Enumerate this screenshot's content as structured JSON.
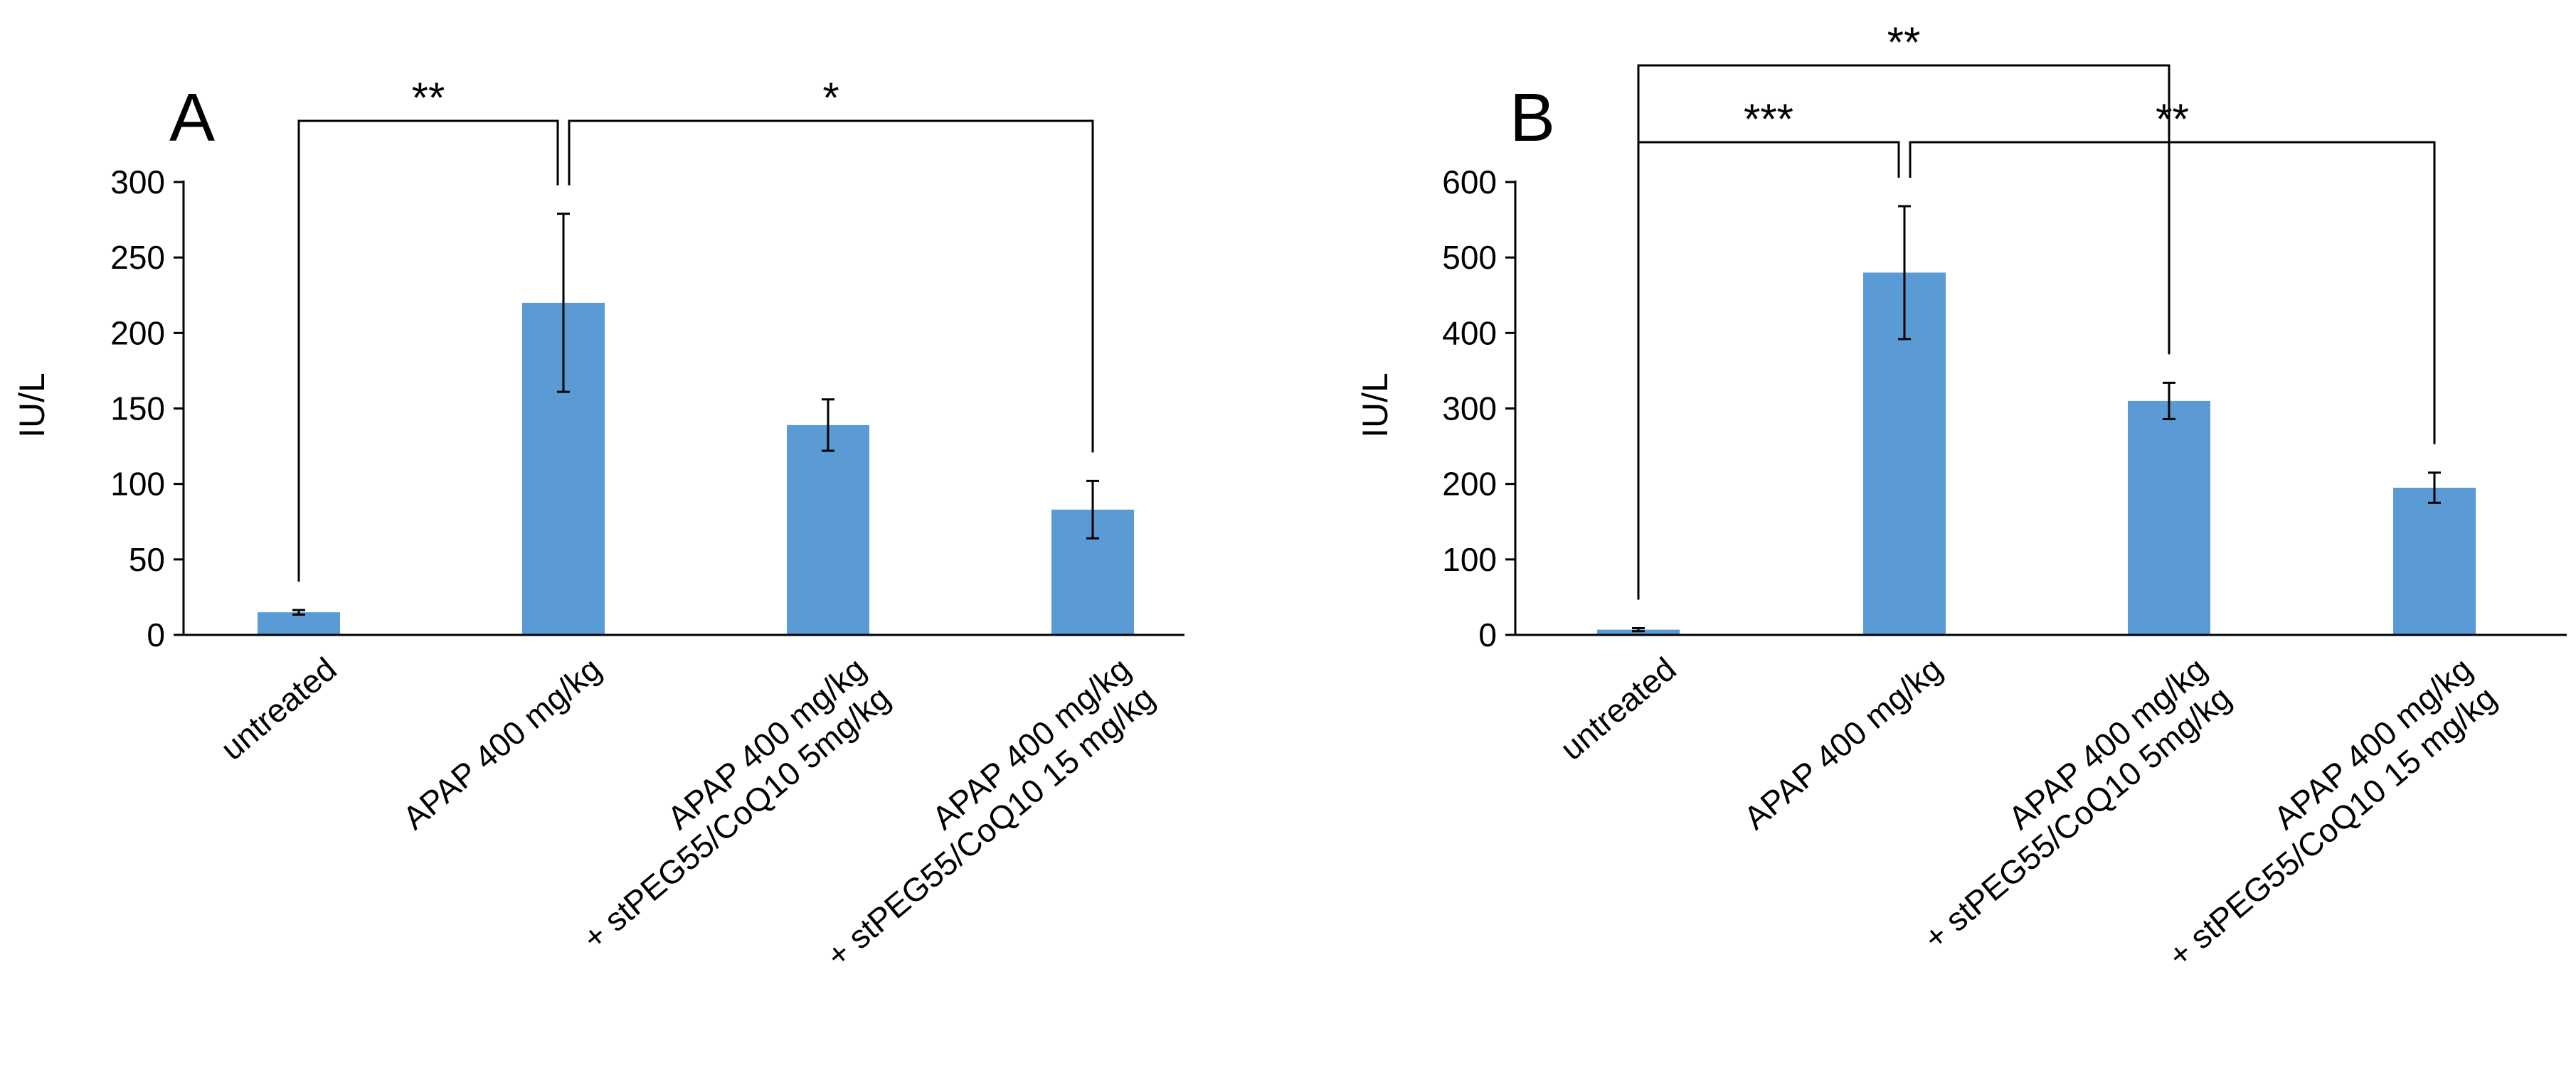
{
  "chart_data": [
    {
      "type": "bar",
      "panel": "A",
      "title": "",
      "xlabel": "",
      "ylabel": "IU/L",
      "ylim": [
        0,
        300
      ],
      "yticks": [
        "0",
        "50",
        "100",
        "150",
        "200",
        "250",
        "300"
      ],
      "categories": [
        [
          "untreated"
        ],
        [
          "APAP 400 mg/kg"
        ],
        [
          "APAP 400 mg/kg",
          "+ stPEG55/CoQ10 5mg/kg"
        ],
        [
          "APAP 400 mg/kg",
          "+ stPEG55/CoQ10 15 mg/kg"
        ]
      ],
      "values": [
        15,
        220,
        139,
        83
      ],
      "errors": [
        1.5,
        59,
        17,
        19
      ],
      "bar_color": "#5b9bd5",
      "significance": [
        {
          "from": 0,
          "to": 1,
          "label": "**",
          "level": 0
        },
        {
          "from": 1,
          "to": 3,
          "label": "*",
          "level": 0
        }
      ]
    },
    {
      "type": "bar",
      "panel": "B",
      "title": "",
      "xlabel": "",
      "ylabel": "IU/L",
      "ylim": [
        0,
        600
      ],
      "yticks": [
        "0",
        "100",
        "200",
        "300",
        "400",
        "500",
        "600"
      ],
      "categories": [
        [
          "untreated"
        ],
        [
          "APAP 400 mg/kg"
        ],
        [
          "APAP 400 mg/kg",
          "+ stPEG55/CoQ10 5mg/kg"
        ],
        [
          "APAP 400 mg/kg",
          "+ stPEG55/CoQ10 15 mg/kg"
        ]
      ],
      "values": [
        7,
        480,
        310,
        195
      ],
      "errors": [
        2,
        88,
        24,
        20
      ],
      "bar_color": "#5b9bd5",
      "significance": [
        {
          "from": 0,
          "to": 1,
          "label": "***",
          "level": 0
        },
        {
          "from": 1,
          "to": 3,
          "label": "**",
          "level": 0
        },
        {
          "from": 0,
          "to": 2,
          "label": "**",
          "level": 1
        }
      ]
    }
  ]
}
